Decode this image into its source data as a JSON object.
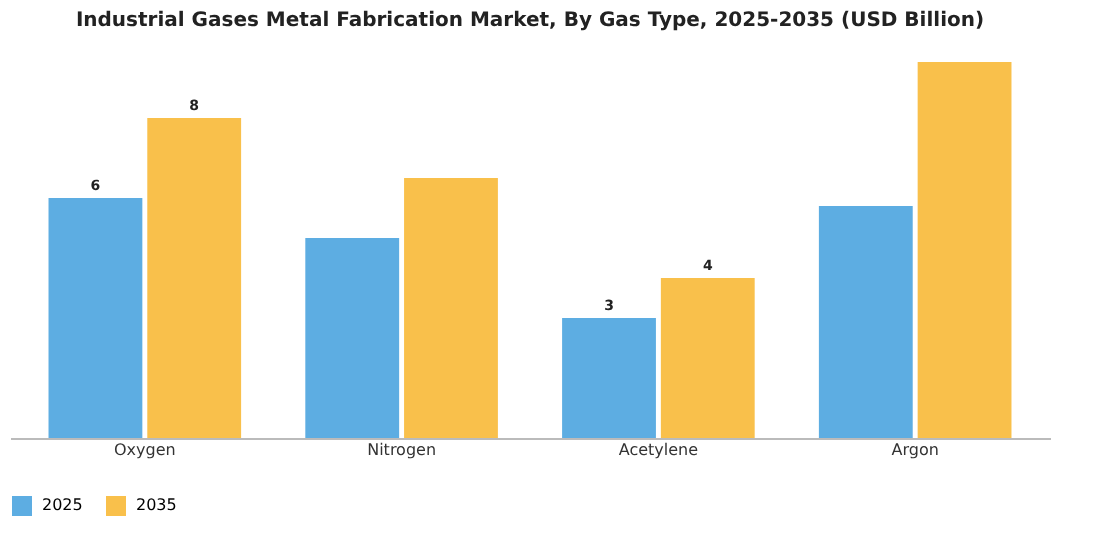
{
  "chart_data": {
    "type": "bar",
    "title": "Industrial Gases Metal Fabrication Market, By Gas Type, 2025-2035 (USD Billion)",
    "categories": [
      "Oxygen",
      "Nitrogen",
      "Acetylene",
      "Argon"
    ],
    "series": [
      {
        "name": "2025",
        "color": "#5dade2",
        "values": [
          6,
          5,
          3,
          5.8
        ],
        "value_labels": [
          "6",
          null,
          "3",
          null
        ]
      },
      {
        "name": "2035",
        "color": "#f9c04b",
        "values": [
          8,
          6.5,
          4,
          9.4
        ],
        "value_labels": [
          "8",
          null,
          "4",
          null
        ]
      }
    ],
    "legend": "bottom",
    "grid": false,
    "tick_labels": "x"
  }
}
